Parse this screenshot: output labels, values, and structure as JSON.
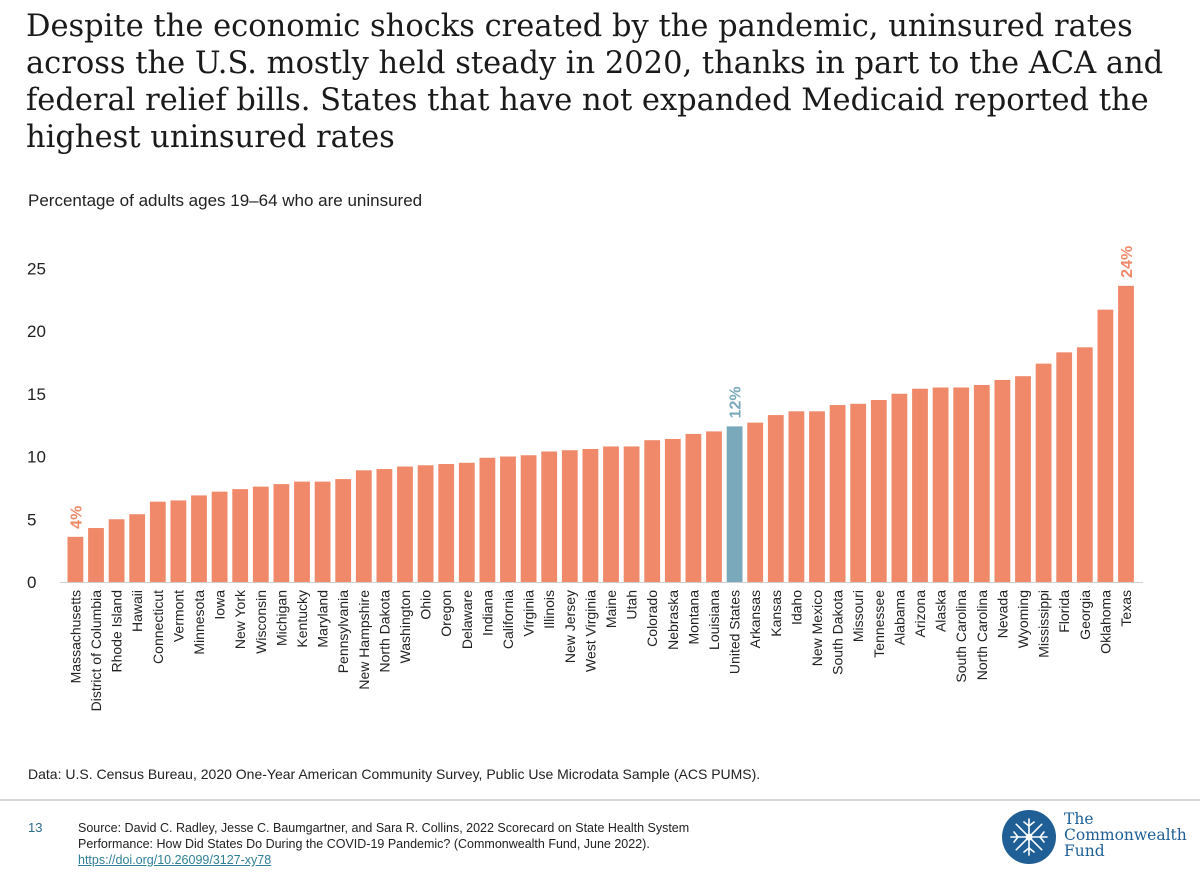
{
  "slide": {
    "title": "Despite the economic shocks created by the pandemic, uninsured rates across the U.S. mostly held steady in 2020, thanks in part to the ACA and federal relief bills. States that have not expanded Medicaid reported the highest uninsured rates"
  },
  "chart_data": {
    "type": "bar",
    "subtitle": "Percentage of adults ages 19–64 who are uninsured",
    "ylim": [
      0,
      25
    ],
    "yticks": [
      0,
      5,
      10,
      15,
      20,
      25
    ],
    "grid": false,
    "bar_color": "#f0896a",
    "highlight_color": "#7aa9bb",
    "categories": [
      "Massachusetts",
      "District of Columbia",
      "Rhode Island",
      "Hawaii",
      "Connecticut",
      "Vermont",
      "Minnesota",
      "Iowa",
      "New York",
      "Wisconsin",
      "Michigan",
      "Kentucky",
      "Maryland",
      "Pennsylvania",
      "New Hampshire",
      "North Dakota",
      "Washington",
      "Ohio",
      "Oregon",
      "Delaware",
      "Indiana",
      "California",
      "Virginia",
      "Illinois",
      "New Jersey",
      "West Virginia",
      "Maine",
      "Utah",
      "Colorado",
      "Nebraska",
      "Montana",
      "Louisiana",
      "United States",
      "Arkansas",
      "Kansas",
      "Idaho",
      "New Mexico",
      "South Dakota",
      "Missouri",
      "Tennessee",
      "Alabama",
      "Arizona",
      "Alaska",
      "South Carolina",
      "North Carolina",
      "Nevada",
      "Wyoming",
      "Mississippi",
      "Florida",
      "Georgia",
      "Oklahoma",
      "Texas"
    ],
    "values": [
      3.6,
      4.3,
      5.0,
      5.4,
      6.4,
      6.5,
      6.9,
      7.2,
      7.4,
      7.6,
      7.8,
      8.0,
      8.0,
      8.2,
      8.9,
      9.0,
      9.2,
      9.3,
      9.4,
      9.5,
      9.9,
      10.0,
      10.1,
      10.4,
      10.5,
      10.6,
      10.8,
      10.8,
      11.3,
      11.4,
      11.8,
      12.0,
      12.4,
      12.7,
      13.3,
      13.6,
      13.6,
      14.1,
      14.2,
      14.5,
      15.0,
      15.4,
      15.5,
      15.5,
      15.7,
      16.1,
      16.4,
      17.4,
      18.3,
      18.7,
      21.7,
      23.6
    ],
    "highlight_index": 32,
    "data_labels": [
      {
        "index": 0,
        "text": "4%",
        "color": "#f0896a"
      },
      {
        "index": 32,
        "text": "12%",
        "color": "#7aa9bb"
      },
      {
        "index": 51,
        "text": "24%",
        "color": "#f0896a"
      }
    ]
  },
  "footer": {
    "data_note": "Data: U.S. Census Bureau, 2020 One-Year American Community Survey, Public Use Microdata Sample (ACS PUMS).",
    "page_number": "13",
    "source_line1": "Source: David C. Radley, Jesse C. Baumgartner, and Sara R. Collins, 2022 Scorecard on State Health System",
    "source_line2": "Performance: How Did States Do During the COVID-19 Pandemic? (Commonwealth Fund, June 2022).",
    "source_link": "https://doi.org/10.26099/3127-xy78"
  },
  "logo": {
    "line1": "The",
    "line2": "Commonwealth",
    "line3": "Fund",
    "color": "#1f5f96"
  }
}
